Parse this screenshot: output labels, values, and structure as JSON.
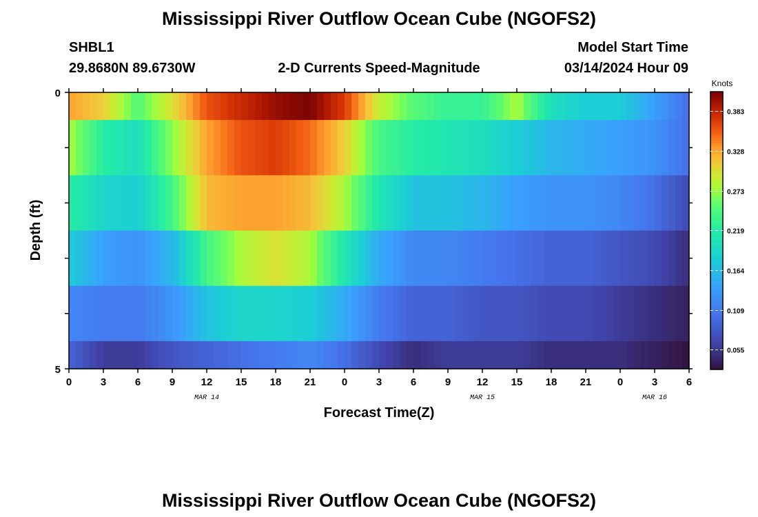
{
  "title": "Mississippi River Outflow Ocean Cube (NGOFS2)",
  "station": {
    "id": "SHBL1",
    "coords": "29.8680N  89.6730W"
  },
  "model_start": {
    "label": "Model Start Time",
    "value": "03/14/2024 Hour 09"
  },
  "footer_title": "Mississippi River Outflow Ocean Cube (NGOFS2)",
  "colorbar": {
    "units": "Knots",
    "ticks": [
      "0.383",
      "0.328",
      "0.273",
      "0.219",
      "0.164",
      "0.109",
      "0.055"
    ],
    "range": [
      0.028,
      0.41
    ],
    "tick_values": [
      0.383,
      0.328,
      0.273,
      0.219,
      0.164,
      0.109,
      0.055
    ]
  },
  "chart_data": {
    "type": "heatmap",
    "title": "2-D Currents Speed-Magnitude",
    "xlabel": "Forecast Time(Z)",
    "ylabel": "Depth (ft)",
    "x_tick_labels": [
      "0",
      "3",
      "6",
      "9",
      "12",
      "15",
      "18",
      "21",
      "0",
      "3",
      "6",
      "9",
      "12",
      "15",
      "18",
      "21",
      "0",
      "3",
      "6"
    ],
    "x_range_hours": [
      0,
      54
    ],
    "date_labels": [
      {
        "text": "MAR 14",
        "hour": 12
      },
      {
        "text": "MAR 15",
        "hour": 36
      },
      {
        "text": "MAR 16",
        "hour": 51
      }
    ],
    "y_tick_labels": [
      "0",
      "5"
    ],
    "ylim": [
      0,
      5
    ],
    "layer_bounds_ft": [
      0,
      0.5,
      1.5,
      2.5,
      3.5,
      4.5,
      5
    ],
    "units": "Knots",
    "value_range": [
      0.028,
      0.41
    ],
    "layers": [
      {
        "hours": [
          0,
          3,
          6,
          9,
          12,
          15,
          18,
          21,
          24,
          27,
          30,
          33,
          36,
          39,
          42,
          45,
          48,
          51,
          54
        ],
        "values": [
          0.33,
          0.31,
          0.25,
          0.3,
          0.36,
          0.38,
          0.4,
          0.41,
          0.37,
          0.29,
          0.25,
          0.23,
          0.23,
          0.28,
          0.2,
          0.18,
          0.18,
          0.14,
          0.1
        ]
      },
      {
        "hours": [
          0,
          3,
          6,
          9,
          12,
          15,
          18,
          21,
          24,
          27,
          30,
          33,
          36,
          39,
          42,
          45,
          48,
          51,
          54
        ],
        "values": [
          0.28,
          0.22,
          0.2,
          0.27,
          0.33,
          0.36,
          0.37,
          0.35,
          0.31,
          0.24,
          0.22,
          0.21,
          0.2,
          0.18,
          0.16,
          0.15,
          0.14,
          0.13,
          0.1
        ]
      },
      {
        "hours": [
          0,
          3,
          6,
          9,
          12,
          15,
          18,
          21,
          24,
          27,
          30,
          33,
          36,
          39,
          42,
          45,
          48,
          51,
          54
        ],
        "values": [
          0.22,
          0.19,
          0.18,
          0.24,
          0.32,
          0.33,
          0.33,
          0.32,
          0.28,
          0.21,
          0.17,
          0.17,
          0.16,
          0.14,
          0.13,
          0.13,
          0.12,
          0.1,
          0.07
        ]
      },
      {
        "hours": [
          0,
          3,
          6,
          9,
          12,
          15,
          18,
          21,
          24,
          27,
          30,
          33,
          36,
          39,
          42,
          45,
          48,
          51,
          54
        ],
        "values": [
          0.18,
          0.14,
          0.13,
          0.16,
          0.24,
          0.28,
          0.3,
          0.28,
          0.21,
          0.15,
          0.12,
          0.12,
          0.11,
          0.1,
          0.09,
          0.09,
          0.08,
          0.07,
          0.05
        ]
      },
      {
        "hours": [
          0,
          3,
          6,
          9,
          12,
          15,
          18,
          21,
          24,
          27,
          30,
          33,
          36,
          39,
          42,
          45,
          48,
          51,
          54
        ],
        "values": [
          0.12,
          0.11,
          0.11,
          0.13,
          0.17,
          0.19,
          0.19,
          0.18,
          0.15,
          0.11,
          0.09,
          0.09,
          0.08,
          0.08,
          0.07,
          0.07,
          0.06,
          0.05,
          0.04
        ]
      },
      {
        "hours": [
          0,
          3,
          6,
          9,
          12,
          15,
          18,
          21,
          24,
          27,
          30,
          33,
          36,
          39,
          42,
          45,
          48,
          51,
          54
        ],
        "values": [
          0.09,
          0.06,
          0.06,
          0.08,
          0.09,
          0.1,
          0.11,
          0.12,
          0.1,
          0.07,
          0.05,
          0.06,
          0.06,
          0.06,
          0.05,
          0.05,
          0.05,
          0.04,
          0.03
        ]
      }
    ]
  }
}
